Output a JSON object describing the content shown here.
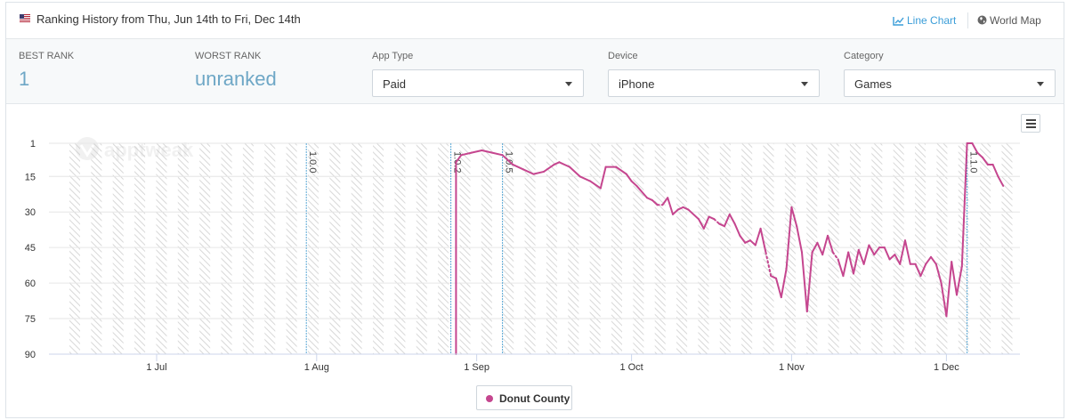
{
  "header": {
    "title": "Ranking History from Thu, Jun 14th to Fri, Dec 14th",
    "line_chart_label": "Line Chart",
    "world_map_label": "World Map"
  },
  "stats": {
    "best_rank_label": "BEST RANK",
    "best_rank_value": "1",
    "worst_rank_label": "WORST RANK",
    "worst_rank_value": "unranked"
  },
  "filters": {
    "app_type_label": "App Type",
    "app_type_value": "Paid",
    "device_label": "Device",
    "device_value": "iPhone",
    "category_label": "Category",
    "category_value": "Games"
  },
  "watermark": "apptweak",
  "colors": {
    "series": "#c5468f",
    "accent": "#3a9dd8",
    "version_line": "#5aa9d6"
  },
  "chart_data": {
    "type": "line",
    "title": "",
    "xlabel": "",
    "ylabel": "",
    "x_axis": "date (2018)",
    "x_range": [
      "2018-06-14",
      "2018-12-14"
    ],
    "x_ticks": [
      {
        "date": "2018-07-01",
        "label": "1 Jul"
      },
      {
        "date": "2018-08-01",
        "label": "1 Aug"
      },
      {
        "date": "2018-09-01",
        "label": "1 Sep"
      },
      {
        "date": "2018-10-01",
        "label": "1 Oct"
      },
      {
        "date": "2018-11-01",
        "label": "1 Nov"
      },
      {
        "date": "2018-12-01",
        "label": "1 Dec"
      }
    ],
    "y_axis_reversed": true,
    "ylim": [
      1,
      90
    ],
    "y_ticks": [
      1,
      15,
      30,
      45,
      60,
      75,
      90
    ],
    "grid": "vertical hatched day bands",
    "legend_placement": "bottom-center",
    "version_markers": [
      {
        "date": "2018-07-30",
        "label": "1.0.0"
      },
      {
        "date": "2018-08-27",
        "label": "1.0.2"
      },
      {
        "date": "2018-09-06",
        "label": "1.0.5"
      },
      {
        "date": "2018-12-05",
        "label": "1.1.0"
      }
    ],
    "series": [
      {
        "name": "Donut County",
        "color": "#c5468f",
        "points": [
          [
            "2018-08-28",
            90
          ],
          [
            "2018-08-28",
            9
          ],
          [
            "2018-08-29",
            6
          ],
          [
            "2018-08-31",
            5
          ],
          [
            "2018-09-02",
            4
          ],
          [
            "2018-09-04",
            5
          ],
          [
            "2018-09-06",
            6
          ],
          [
            "2018-09-08",
            10
          ],
          [
            "2018-09-10",
            12
          ],
          [
            "2018-09-12",
            14
          ],
          [
            "2018-09-14",
            13
          ],
          [
            "2018-09-16",
            10
          ],
          [
            "2018-09-17",
            9
          ],
          [
            "2018-09-19",
            11
          ],
          [
            "2018-09-21",
            15
          ],
          [
            "2018-09-23",
            17
          ],
          [
            "2018-09-25",
            20
          ],
          [
            "2018-09-26",
            11
          ],
          [
            "2018-09-28",
            11
          ],
          [
            "2018-09-30",
            14
          ],
          [
            "2018-10-01",
            17
          ],
          [
            "2018-10-02",
            19
          ],
          [
            "2018-10-04",
            24
          ],
          [
            "2018-10-05",
            25
          ],
          [
            "2018-10-06",
            27,
            "gap"
          ],
          [
            "2018-10-07",
            27
          ],
          [
            "2018-10-08",
            24
          ],
          [
            "2018-10-09",
            31
          ],
          [
            "2018-10-10",
            29
          ],
          [
            "2018-10-11",
            28
          ],
          [
            "2018-10-12",
            29
          ],
          [
            "2018-10-14",
            33
          ],
          [
            "2018-10-15",
            37
          ],
          [
            "2018-10-16",
            32
          ],
          [
            "2018-10-17",
            33,
            "gap"
          ],
          [
            "2018-10-18",
            35
          ],
          [
            "2018-10-19",
            36
          ],
          [
            "2018-10-20",
            31
          ],
          [
            "2018-10-21",
            35
          ],
          [
            "2018-10-22",
            40
          ],
          [
            "2018-10-23",
            43
          ],
          [
            "2018-10-24",
            42
          ],
          [
            "2018-10-25",
            44
          ],
          [
            "2018-10-26",
            37
          ],
          [
            "2018-10-27",
            47,
            "gap"
          ],
          [
            "2018-10-28",
            57
          ],
          [
            "2018-10-29",
            58
          ],
          [
            "2018-10-30",
            66
          ],
          [
            "2018-10-31",
            54
          ],
          [
            "2018-11-01",
            28
          ],
          [
            "2018-11-02",
            36
          ],
          [
            "2018-11-03",
            47
          ],
          [
            "2018-11-04",
            72
          ],
          [
            "2018-11-05",
            47
          ],
          [
            "2018-11-06",
            43
          ],
          [
            "2018-11-07",
            48
          ],
          [
            "2018-11-08",
            40
          ],
          [
            "2018-11-09",
            47,
            "gap"
          ],
          [
            "2018-11-10",
            50
          ],
          [
            "2018-11-11",
            57
          ],
          [
            "2018-11-12",
            47
          ],
          [
            "2018-11-13",
            56
          ],
          [
            "2018-11-14",
            46
          ],
          [
            "2018-11-15",
            52
          ],
          [
            "2018-11-16",
            44
          ],
          [
            "2018-11-17",
            48
          ],
          [
            "2018-11-18",
            45
          ],
          [
            "2018-11-19",
            45
          ],
          [
            "2018-11-20",
            50
          ],
          [
            "2018-11-21",
            48
          ],
          [
            "2018-11-22",
            52
          ],
          [
            "2018-11-23",
            42
          ],
          [
            "2018-11-24",
            52
          ],
          [
            "2018-11-25",
            52
          ],
          [
            "2018-11-26",
            57
          ],
          [
            "2018-11-27",
            52
          ],
          [
            "2018-11-28",
            49
          ],
          [
            "2018-11-29",
            52
          ],
          [
            "2018-11-30",
            60
          ],
          [
            "2018-12-01",
            74
          ],
          [
            "2018-12-02",
            51
          ],
          [
            "2018-12-03",
            65
          ],
          [
            "2018-12-04",
            53
          ],
          [
            "2018-12-05",
            1
          ],
          [
            "2018-12-06",
            1
          ],
          [
            "2018-12-07",
            5
          ],
          [
            "2018-12-08",
            7
          ],
          [
            "2018-12-09",
            10
          ],
          [
            "2018-12-10",
            10
          ],
          [
            "2018-12-11",
            15
          ],
          [
            "2018-12-12",
            19
          ]
        ]
      }
    ]
  }
}
